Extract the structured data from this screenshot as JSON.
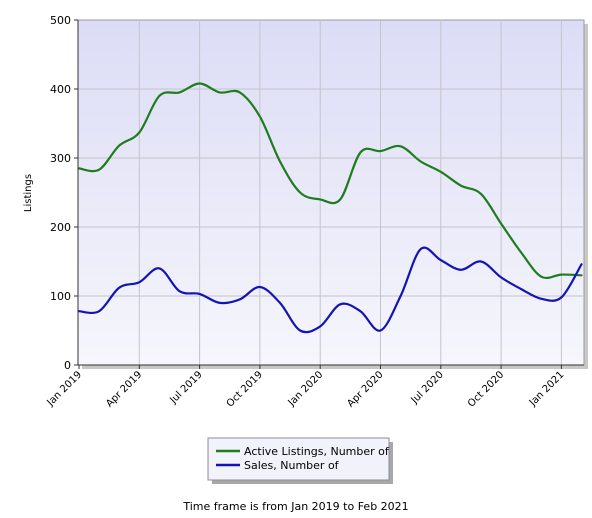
{
  "caption": "Time frame is from Jan 2019 to Feb 2021",
  "colors": {
    "plot_background": "#e8e8f8",
    "grid": "#c4c4cc",
    "active_listings": "#1e7d1e",
    "sales": "#1414b4"
  },
  "chart_data": {
    "type": "line",
    "ylabel": "Listings",
    "xlabel": "",
    "ylim": [
      0,
      500
    ],
    "yticks": [
      0,
      100,
      200,
      300,
      400,
      500
    ],
    "grid": true,
    "legend_position": "bottom-center",
    "x": [
      "Jan 2019",
      "Feb 2019",
      "Mar 2019",
      "Apr 2019",
      "May 2019",
      "Jun 2019",
      "Jul 2019",
      "Aug 2019",
      "Sep 2019",
      "Oct 2019",
      "Nov 2019",
      "Dec 2019",
      "Jan 2020",
      "Feb 2020",
      "Mar 2020",
      "Apr 2020",
      "May 2020",
      "Jun 2020",
      "Jul 2020",
      "Aug 2020",
      "Sep 2020",
      "Oct 2020",
      "Nov 2020",
      "Dec 2020",
      "Jan 2021",
      "Feb 2021"
    ],
    "xticks": [
      "Jan 2019",
      "Apr 2019",
      "Jul 2019",
      "Oct 2019",
      "Jan 2020",
      "Apr 2020",
      "Jul 2020",
      "Oct 2020",
      "Jan 2021"
    ],
    "series": [
      {
        "name": "Active Listings, Number of",
        "values": [
          285,
          283,
          318,
          337,
          390,
          395,
          408,
          395,
          395,
          360,
          295,
          250,
          240,
          240,
          308,
          310,
          317,
          295,
          280,
          260,
          248,
          205,
          163,
          128,
          131,
          130
        ]
      },
      {
        "name": "Sales, Number of",
        "values": [
          78,
          78,
          112,
          120,
          140,
          107,
          103,
          90,
          95,
          113,
          90,
          50,
          56,
          88,
          78,
          50,
          100,
          168,
          152,
          138,
          150,
          127,
          110,
          96,
          98,
          146
        ]
      }
    ]
  }
}
